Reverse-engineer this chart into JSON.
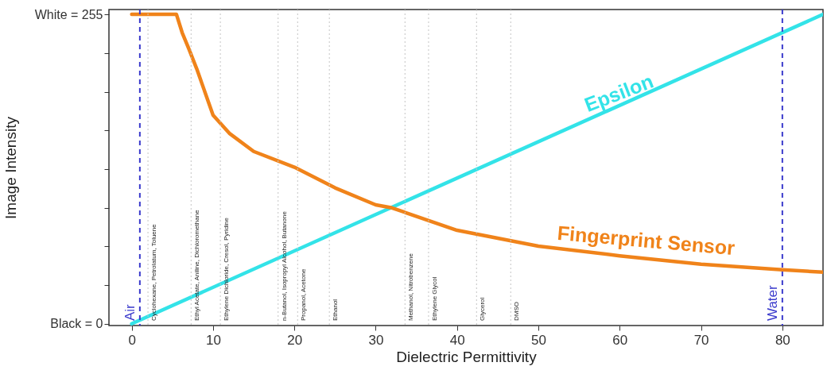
{
  "chart_data": {
    "type": "line",
    "xlabel": "Dielectric Permittivity",
    "ylabel": "Image Intensity",
    "xlim": [
      -2.8,
      85
    ],
    "ylim": [
      -1.5,
      259
    ],
    "xticks": [
      0,
      10,
      20,
      30,
      40,
      50,
      60,
      70,
      80
    ],
    "yticks": [
      {
        "value": 0,
        "label": "Black = 0"
      },
      {
        "value": 31.875,
        "label": null
      },
      {
        "value": 63.75,
        "label": null
      },
      {
        "value": 95.625,
        "label": null
      },
      {
        "value": 127.5,
        "label": null
      },
      {
        "value": 159.375,
        "label": null
      },
      {
        "value": 191.25,
        "label": null
      },
      {
        "value": 223.125,
        "label": null
      },
      {
        "value": 255,
        "label": "White = 255"
      }
    ],
    "series": [
      {
        "name": "Epsilon",
        "color": "#33e3e8",
        "x": [
          0,
          85
        ],
        "values": [
          0,
          255
        ]
      },
      {
        "name": "Fingerprint Sensor",
        "color": "#f0831a",
        "x": [
          0,
          5.5,
          6.2,
          7,
          8,
          10,
          12,
          15,
          20,
          25,
          30,
          32,
          40,
          50,
          60,
          70,
          80,
          85
        ],
        "values": [
          255,
          255,
          240,
          227,
          210,
          172,
          157,
          142,
          129,
          112,
          98,
          95.5,
          77,
          64,
          56,
          49,
          44.5,
          42.5
        ]
      }
    ],
    "ref_lines": [
      {
        "axis": "x",
        "value": 1,
        "label": "Air",
        "color": "#3a3acc",
        "line_style": "dashed"
      },
      {
        "axis": "x",
        "value": 80,
        "label": "Water",
        "color": "#3a3acc",
        "line_style": "dashed"
      },
      {
        "axis": "x",
        "value": 2,
        "label": "Cyclohexane, Petrolatum, Toluene",
        "color": "#c4c4c4",
        "line_style": "dotted"
      },
      {
        "axis": "x",
        "value": 7.3,
        "label": "Ethyl Acetate, Aniline, Dichloromethane",
        "color": "#c4c4c4",
        "line_style": "dotted"
      },
      {
        "axis": "x",
        "value": 10.9,
        "label": "Ethylene Dichloride, Cresol, Pyridine",
        "color": "#c4c4c4",
        "line_style": "dotted"
      },
      {
        "axis": "x",
        "value": 18,
        "label": "n-Butanol, Isopropyl Alcohol, Butanone",
        "color": "#c4c4c4",
        "line_style": "dotted"
      },
      {
        "axis": "x",
        "value": 20.4,
        "label": "Propanol, Acetone",
        "color": "#c4c4c4",
        "line_style": "dotted"
      },
      {
        "axis": "x",
        "value": 24.3,
        "label": "Ethanol",
        "color": "#c4c4c4",
        "line_style": "dotted"
      },
      {
        "axis": "x",
        "value": 33.6,
        "label": "Methanol, Nitrobenzene",
        "color": "#c4c4c4",
        "line_style": "dotted"
      },
      {
        "axis": "x",
        "value": 36.5,
        "label": "Ethylene Glycol",
        "color": "#c4c4c4",
        "line_style": "dotted"
      },
      {
        "axis": "x",
        "value": 42.4,
        "label": "Glycerol",
        "color": "#c4c4c4",
        "line_style": "dotted"
      },
      {
        "axis": "x",
        "value": 46.6,
        "label": "DMSO",
        "color": "#c4c4c4",
        "line_style": "dotted"
      }
    ]
  }
}
